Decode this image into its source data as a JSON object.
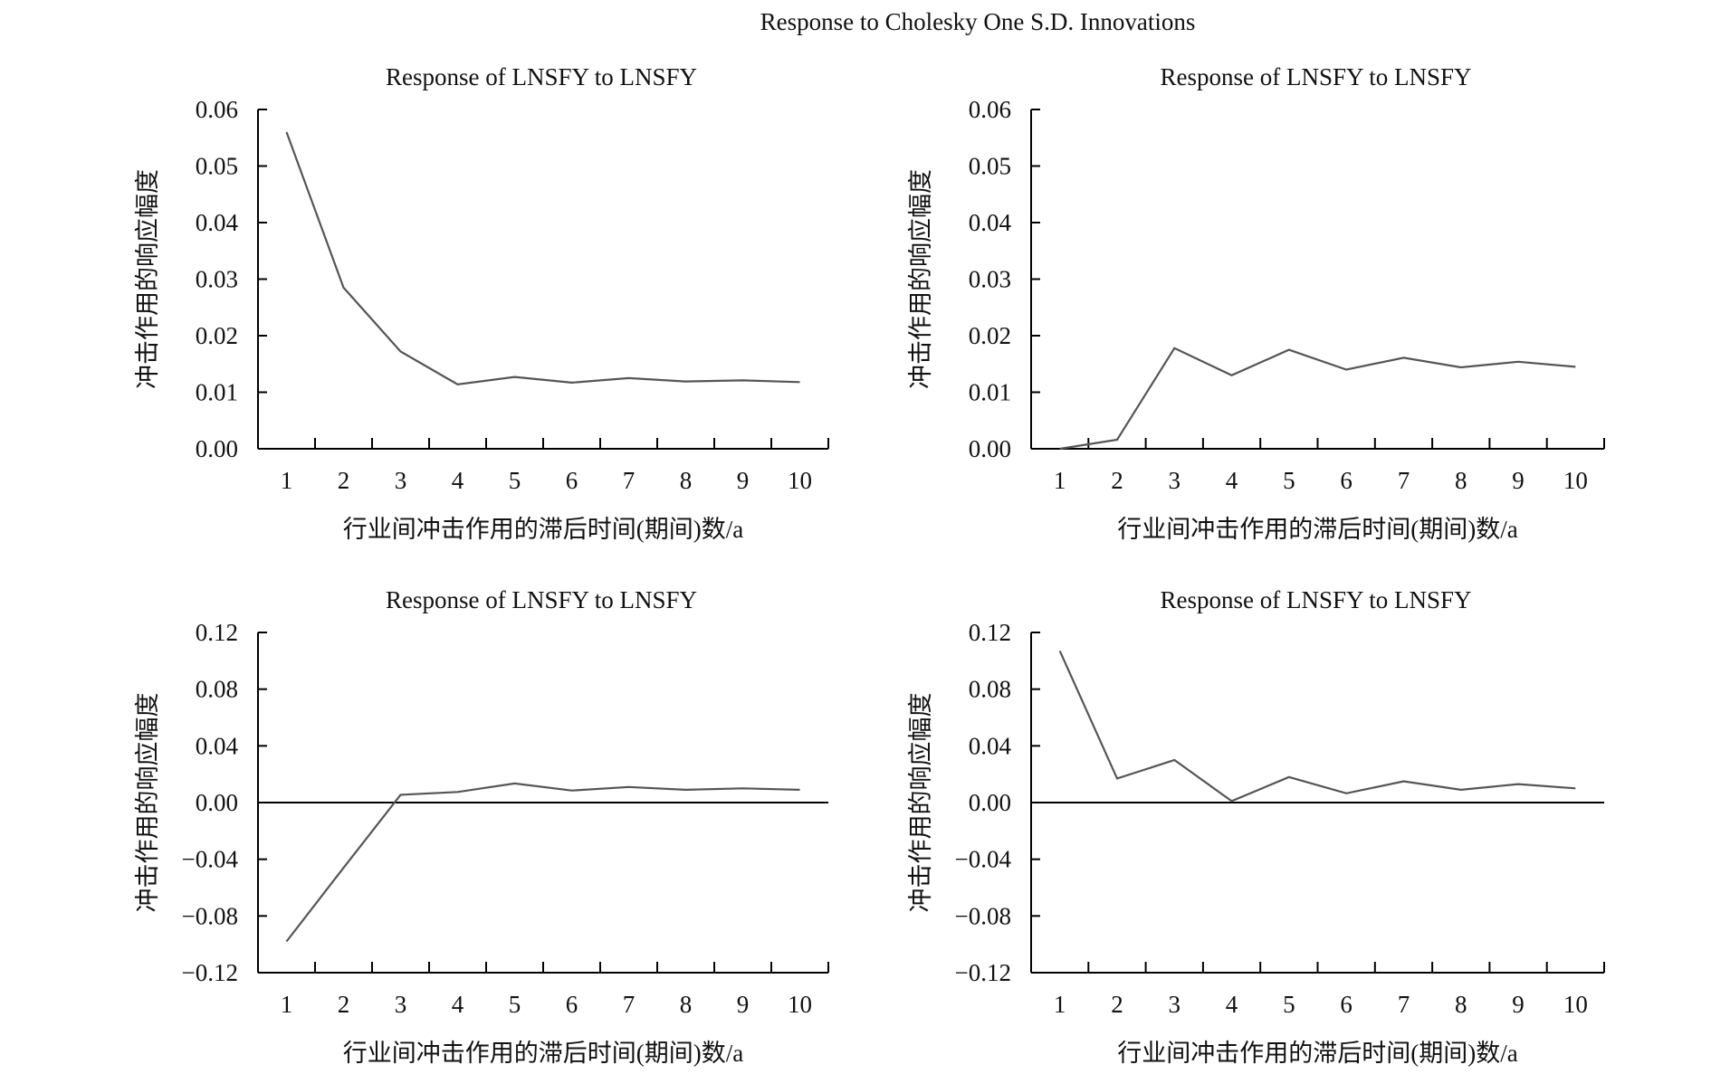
{
  "title": "Response to Cholesky One S.D. Innovations",
  "chart_data": [
    {
      "type": "line",
      "title": "Response of LNSFY to LNSFY",
      "xlabel": "行业间冲击作用的滞后时间(期间)数/a",
      "ylabel": "冲击作用的响应幅度",
      "categories": [
        "1",
        "2",
        "3",
        "4",
        "5",
        "6",
        "7",
        "8",
        "9",
        "10"
      ],
      "values": [
        0.056,
        0.0285,
        0.0172,
        0.0114,
        0.0127,
        0.0117,
        0.0125,
        0.0119,
        0.0121,
        0.0118
      ],
      "ylim": [
        0,
        0.06
      ],
      "yticks": [
        "0.00",
        "0.01",
        "0.02",
        "0.03",
        "0.04",
        "0.05",
        "0.06"
      ],
      "zero_line": false,
      "grid": false,
      "line_color": "#555555"
    },
    {
      "type": "line",
      "title": "Response of LNSFY to LNSFY",
      "xlabel": "行业间冲击作用的滞后时间(期间)数/a",
      "ylabel": "冲击作用的响应幅度",
      "categories": [
        "1",
        "2",
        "3",
        "4",
        "5",
        "6",
        "7",
        "8",
        "9",
        "10"
      ],
      "values": [
        0.0,
        0.0016,
        0.0178,
        0.013,
        0.0175,
        0.014,
        0.0161,
        0.0144,
        0.0154,
        0.0145
      ],
      "ylim": [
        0,
        0.06
      ],
      "yticks": [
        "0.00",
        "0.01",
        "0.02",
        "0.03",
        "0.04",
        "0.05",
        "0.06"
      ],
      "zero_line": false,
      "grid": false,
      "line_color": "#555555"
    },
    {
      "type": "line",
      "title": "Response of LNSFY to LNSFY",
      "xlabel": "行业间冲击作用的滞后时间(期间)数/a",
      "ylabel": "冲击作用的响应幅度",
      "categories": [
        "1",
        "2",
        "3",
        "4",
        "5",
        "6",
        "7",
        "8",
        "9",
        "10"
      ],
      "values": [
        -0.098,
        -0.046,
        0.0055,
        0.0075,
        0.0135,
        0.0085,
        0.011,
        0.009,
        0.01,
        0.009
      ],
      "ylim": [
        -0.12,
        0.12
      ],
      "yticks": [
        "−0.12",
        "−0.08",
        "−0.04",
        "0.00",
        "0.04",
        "0.08",
        "0.12"
      ],
      "zero_line": true,
      "grid": false,
      "line_color": "#555555"
    },
    {
      "type": "line",
      "title": "Response of LNSFY to LNSFY",
      "xlabel": "行业间冲击作用的滞后时间(期间)数/a",
      "ylabel": "冲击作用的响应幅度",
      "categories": [
        "1",
        "2",
        "3",
        "4",
        "5",
        "6",
        "7",
        "8",
        "9",
        "10"
      ],
      "values": [
        0.107,
        0.017,
        0.03,
        0.001,
        0.018,
        0.0065,
        0.015,
        0.009,
        0.013,
        0.01
      ],
      "ylim": [
        -0.12,
        0.12
      ],
      "yticks": [
        "−0.12",
        "−0.08",
        "−0.04",
        "0.00",
        "0.04",
        "0.08",
        "0.12"
      ],
      "zero_line": true,
      "grid": false,
      "line_color": "#555555"
    }
  ]
}
